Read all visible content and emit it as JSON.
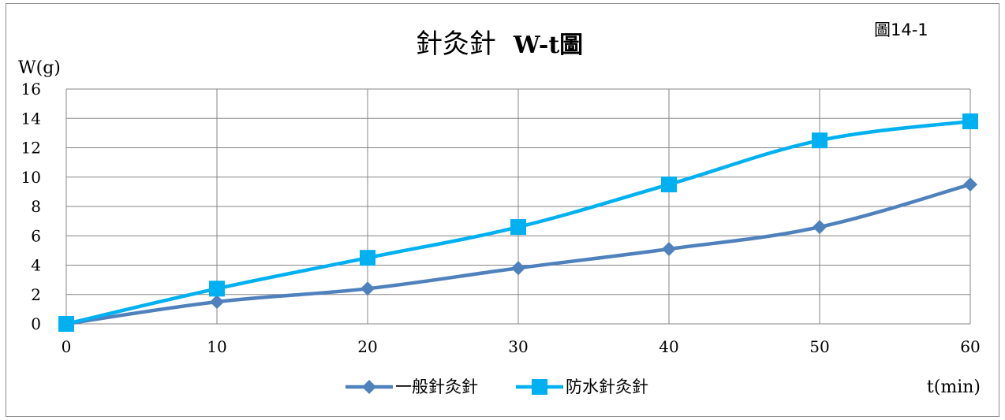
{
  "chart_data": {
    "type": "line",
    "title_main": "針灸針",
    "title_suffix": "W-t圖",
    "figure_label": "圖14-1",
    "ylabel": "W(g)",
    "xlabel": "t(min)",
    "x": [
      0,
      10,
      20,
      30,
      40,
      50,
      60
    ],
    "xlim": [
      0,
      60
    ],
    "ylim": [
      0,
      16
    ],
    "xticks": [
      0,
      10,
      20,
      30,
      40,
      50,
      60
    ],
    "yticks": [
      0,
      2,
      4,
      6,
      8,
      10,
      12,
      14,
      16
    ],
    "grid": true,
    "legend_position": "bottom",
    "series": [
      {
        "name": "一般針灸針",
        "values": [
          0,
          1.5,
          2.4,
          3.8,
          5.1,
          6.6,
          9.5
        ],
        "color": "#4f81bd",
        "marker": "diamond"
      },
      {
        "name": "防水針灸針",
        "values": [
          0,
          2.4,
          4.5,
          6.6,
          9.5,
          12.5,
          13.8
        ],
        "color": "#00b0f0",
        "marker": "square"
      }
    ]
  }
}
